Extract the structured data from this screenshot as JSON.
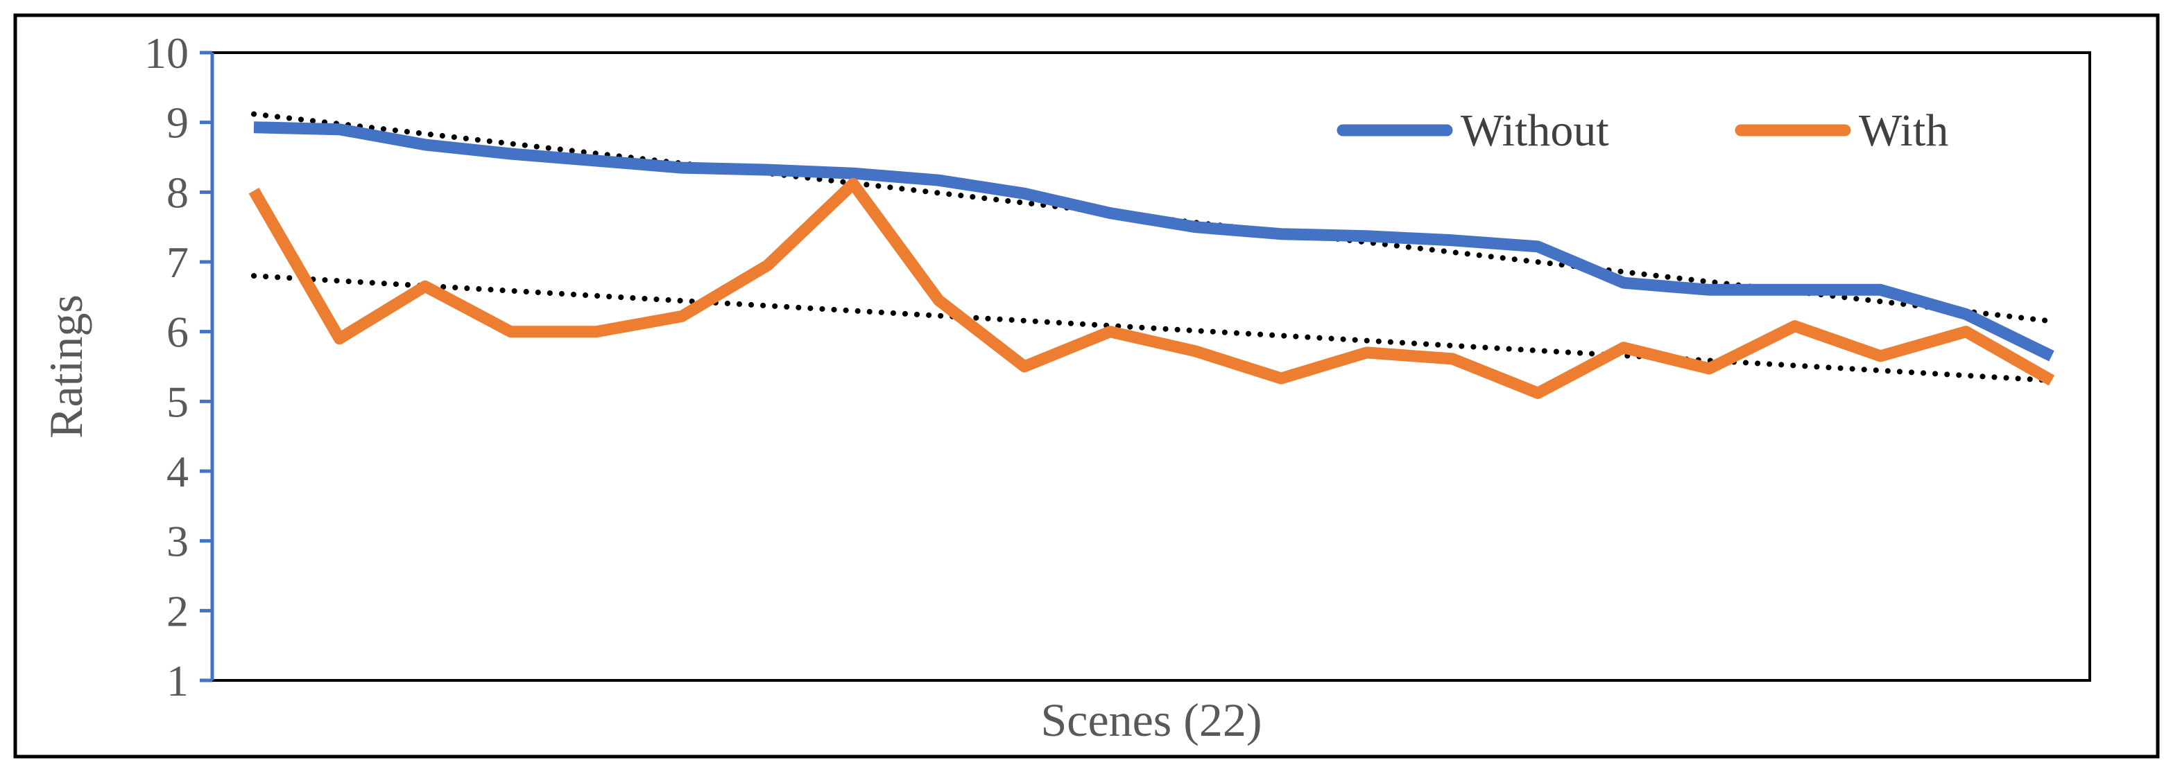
{
  "chart_data": {
    "type": "line",
    "title": "",
    "xlabel": "Scenes (22)",
    "ylabel": "Ratings",
    "ylim": [
      1,
      10
    ],
    "yticks": [
      "1",
      "2",
      "3",
      "4",
      "5",
      "6",
      "7",
      "8",
      "9",
      "10"
    ],
    "x": [
      1,
      2,
      3,
      4,
      5,
      6,
      7,
      8,
      9,
      10,
      11,
      12,
      13,
      14,
      15,
      16,
      17,
      18,
      19,
      20,
      21,
      22
    ],
    "series": [
      {
        "name": "Without",
        "color": "#4472C4",
        "values": [
          8.93,
          8.9,
          8.68,
          8.55,
          8.45,
          8.35,
          8.32,
          8.27,
          8.17,
          7.98,
          7.7,
          7.5,
          7.4,
          7.37,
          7.31,
          7.22,
          6.7,
          6.6,
          6.6,
          6.6,
          6.25,
          5.65
        ]
      },
      {
        "name": "With",
        "color": "#ED7D31",
        "values": [
          8.02,
          5.9,
          6.65,
          6.0,
          6.0,
          6.22,
          6.95,
          8.12,
          6.45,
          5.5,
          6.0,
          5.72,
          5.33,
          5.7,
          5.61,
          5.12,
          5.77,
          5.47,
          6.08,
          5.65,
          6.0,
          5.3
        ]
      }
    ],
    "trendlines": [
      {
        "series": "Without",
        "type": "linear",
        "style": "dotted",
        "color": "#000000",
        "start": 9.12,
        "end": 6.15
      },
      {
        "series": "With",
        "type": "linear",
        "style": "dotted",
        "color": "#000000",
        "start": 6.8,
        "end": 5.3
      }
    ],
    "grid": false,
    "legend": "top-right"
  }
}
